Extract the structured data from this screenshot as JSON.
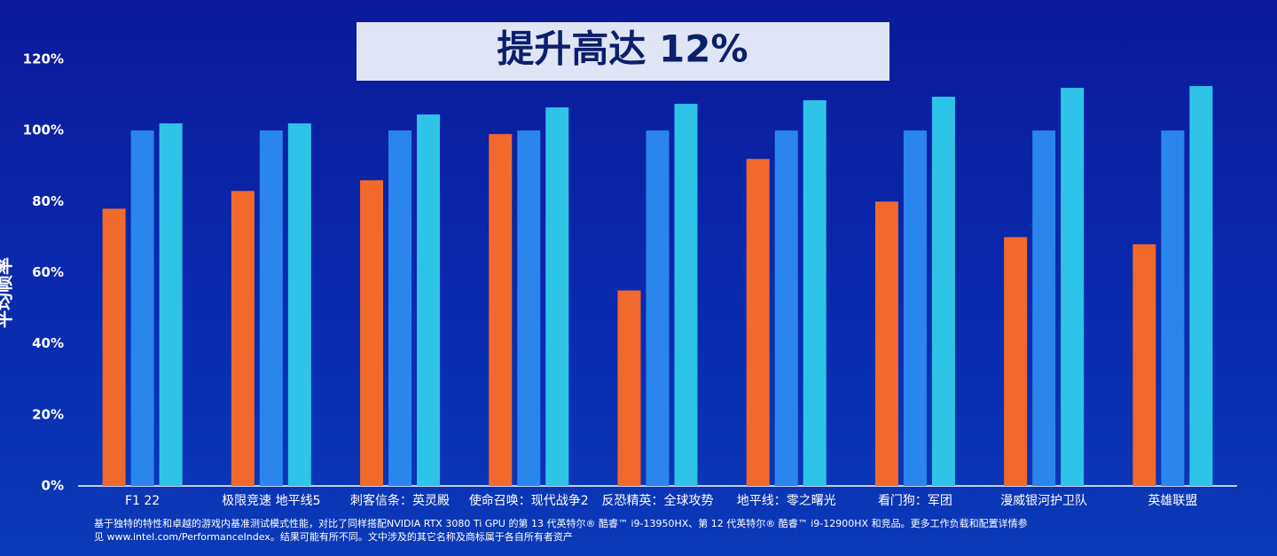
{
  "chart_data": {
    "type": "bar",
    "title": "提升高达 12%",
    "y_label": "平均帧率",
    "categories": [
      "F1 22",
      "极限竞速 地平线5",
      "刺客信条：英灵殿",
      "使命召唤：现代战争2",
      "反恐精英：全球攻势",
      "地平线：零之曙光",
      "看门狗：军团",
      "漫威银河护卫队",
      "英雄联盟"
    ],
    "series": [
      {
        "color": "#f2692c",
        "values": [
          78,
          83,
          86,
          99,
          55,
          92,
          80,
          70,
          68
        ]
      },
      {
        "color": "#2a86ec",
        "values": [
          100,
          100,
          100,
          100,
          100,
          100,
          100,
          100,
          100
        ]
      },
      {
        "color": "#2ec4e8",
        "values": [
          102,
          102,
          104.5,
          106.5,
          107.5,
          108.5,
          109.5,
          112,
          112.5
        ]
      }
    ],
    "ylim": [
      0,
      120
    ],
    "yticks": [
      {
        "value": 0,
        "label": "0%"
      },
      {
        "value": 20,
        "label": "20%"
      },
      {
        "value": 40,
        "label": "40%"
      },
      {
        "value": 60,
        "label": "60%"
      },
      {
        "value": 80,
        "label": "80%"
      },
      {
        "value": 100,
        "label": "100%"
      },
      {
        "value": 120,
        "label": "120%"
      }
    ],
    "footnote": [
      "基于独特的特性和卓越的游戏内基准测试模式性能，对比了同样搭配NVIDIA RTX 3080 Ti GPU 的第 13 代英特尔® 酷睿™ i9-13950HX、第 12 代英特尔® 酷睿™ i9-12900HX 和竞品。更多工作负载和配置详情参",
      "见 www.intel.com/PerformanceIndex。结果可能有所不同。文中涉及的其它名称及商标属于各自所有者资产"
    ]
  }
}
